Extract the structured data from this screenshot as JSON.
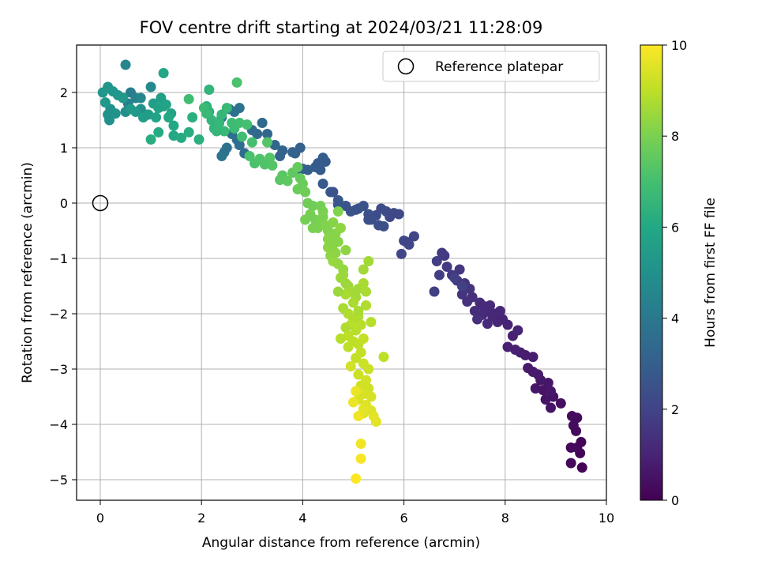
{
  "chart_data": {
    "type": "scatter",
    "title": "FOV centre drift starting at 2024/03/21 11:28:09",
    "xlabel": "Angular distance from reference (arcmin)",
    "ylabel": "Rotation from reference (arcmin)",
    "xlim": [
      -0.45,
      10.0
    ],
    "ylim": [
      -5.35,
      2.85
    ],
    "xticks": [
      "0",
      "2",
      "4",
      "6",
      "8",
      "10"
    ],
    "yticks": [
      "−5",
      "−4",
      "−3",
      "−2",
      "−1",
      "0",
      "1",
      "2"
    ],
    "grid": true,
    "legend": {
      "position": "top-right",
      "entries": [
        "Reference platepar"
      ]
    },
    "reference_point": {
      "x": 0,
      "y": 0
    },
    "colorbar": {
      "label": "Hours from first FF file",
      "range": [
        0,
        10
      ],
      "ticks": [
        "0",
        "2",
        "4",
        "6",
        "8",
        "10"
      ],
      "colormap": "viridis"
    },
    "colors": {
      "v0": "#440154",
      "v1": "#482475",
      "v2": "#414487",
      "v3": "#355f8d",
      "v4": "#2a788e",
      "v5": "#21918c",
      "v6": "#22a884",
      "v7": "#44bf70",
      "v8": "#7ad151",
      "v9": "#bddf26",
      "v10": "#fde725"
    },
    "points": [
      [
        9.52,
        -4.78,
        0.1
      ],
      [
        9.48,
        -4.52,
        0.1
      ],
      [
        9.42,
        -4.42,
        0.2
      ],
      [
        9.5,
        -4.32,
        0.1
      ],
      [
        9.3,
        -4.7,
        0.2
      ],
      [
        9.3,
        -4.42,
        0.2
      ],
      [
        9.4,
        -4.12,
        0.3
      ],
      [
        9.35,
        -4.02,
        0.3
      ],
      [
        9.42,
        -3.88,
        0.3
      ],
      [
        9.32,
        -3.85,
        0.3
      ],
      [
        9.1,
        -3.62,
        0.4
      ],
      [
        8.9,
        -3.7,
        0.5
      ],
      [
        8.95,
        -3.5,
        0.5
      ],
      [
        8.8,
        -3.55,
        0.5
      ],
      [
        8.75,
        -3.38,
        0.5
      ],
      [
        8.9,
        -3.4,
        0.6
      ],
      [
        8.85,
        -3.25,
        0.6
      ],
      [
        8.6,
        -3.35,
        0.6
      ],
      [
        8.7,
        -3.2,
        0.6
      ],
      [
        8.65,
        -3.1,
        0.7
      ],
      [
        8.55,
        -3.05,
        0.7
      ],
      [
        8.45,
        -2.98,
        0.7
      ],
      [
        8.4,
        -2.75,
        0.8
      ],
      [
        8.55,
        -2.78,
        0.8
      ],
      [
        8.3,
        -2.7,
        0.8
      ],
      [
        8.2,
        -2.65,
        0.9
      ],
      [
        8.05,
        -2.6,
        0.9
      ],
      [
        8.15,
        -2.4,
        0.9
      ],
      [
        8.25,
        -2.3,
        1.0
      ],
      [
        8.05,
        -2.2,
        1.0
      ],
      [
        7.95,
        -2.1,
        1.0
      ],
      [
        7.85,
        -2.15,
        1.1
      ],
      [
        7.9,
        -1.95,
        1.1
      ],
      [
        7.75,
        -2.05,
        1.1
      ],
      [
        7.65,
        -2.18,
        1.2
      ],
      [
        7.55,
        -2.02,
        1.2
      ],
      [
        7.7,
        -1.85,
        1.2
      ],
      [
        7.6,
        -1.9,
        1.3
      ],
      [
        7.5,
        -1.8,
        1.3
      ],
      [
        7.4,
        -1.95,
        1.3
      ],
      [
        7.45,
        -2.1,
        1.4
      ],
      [
        7.35,
        -1.7,
        1.4
      ],
      [
        7.25,
        -1.78,
        1.4
      ],
      [
        7.3,
        -1.55,
        1.5
      ],
      [
        7.15,
        -1.65,
        1.5
      ],
      [
        7.2,
        -1.45,
        1.5
      ],
      [
        7.05,
        -1.4,
        1.6
      ],
      [
        6.95,
        -1.3,
        1.6
      ],
      [
        7.1,
        -1.2,
        1.6
      ],
      [
        6.85,
        -1.15,
        1.7
      ],
      [
        6.75,
        -0.9,
        1.7
      ],
      [
        6.8,
        -0.95,
        1.7
      ],
      [
        6.6,
        -1.6,
        1.8
      ],
      [
        6.7,
        -1.3,
        1.8
      ],
      [
        6.65,
        -1.05,
        1.8
      ],
      [
        7.0,
        -1.35,
        1.9
      ],
      [
        7.15,
        -1.5,
        1.9
      ],
      [
        7.55,
        -1.85,
        1.2
      ],
      [
        7.65,
        -1.95,
        1.2
      ],
      [
        7.8,
        -2.0,
        1.1
      ],
      [
        6.2,
        -0.6,
        2.0
      ],
      [
        6.05,
        -0.7,
        2.0
      ],
      [
        6.1,
        -0.75,
        2.1
      ],
      [
        5.95,
        -0.92,
        2.1
      ],
      [
        6.0,
        -0.68,
        2.1
      ],
      [
        5.9,
        -0.2,
        2.2
      ],
      [
        5.8,
        -0.18,
        2.2
      ],
      [
        5.72,
        -0.25,
        2.2
      ],
      [
        5.65,
        -0.15,
        2.3
      ],
      [
        5.55,
        -0.1,
        2.3
      ],
      [
        5.45,
        -0.22,
        2.3
      ],
      [
        5.35,
        -0.3,
        2.4
      ],
      [
        5.5,
        -0.4,
        2.4
      ],
      [
        5.6,
        -0.42,
        2.4
      ],
      [
        5.2,
        -0.05,
        2.5
      ],
      [
        5.3,
        -0.2,
        2.5
      ],
      [
        5.05,
        -0.12,
        2.6
      ],
      [
        4.95,
        -0.15,
        2.6
      ],
      [
        4.85,
        -0.05,
        2.6
      ],
      [
        4.7,
        0.05,
        2.7
      ],
      [
        4.55,
        0.2,
        2.7
      ],
      [
        4.4,
        0.35,
        2.8
      ],
      [
        4.35,
        0.6,
        2.8
      ],
      [
        4.45,
        0.75,
        2.8
      ],
      [
        4.4,
        0.82,
        2.9
      ],
      [
        4.3,
        0.72,
        2.9
      ],
      [
        4.25,
        0.65,
        2.9
      ],
      [
        4.1,
        0.6,
        3.0
      ],
      [
        4.0,
        0.62,
        3.0
      ],
      [
        3.9,
        0.55,
        3.1
      ],
      [
        3.85,
        0.9,
        3.1
      ],
      [
        3.95,
        1.0,
        3.1
      ],
      [
        3.8,
        0.92,
        3.2
      ],
      [
        3.6,
        0.95,
        3.2
      ],
      [
        3.55,
        0.85,
        3.2
      ],
      [
        3.45,
        1.05,
        3.3
      ],
      [
        3.3,
        1.25,
        3.3
      ],
      [
        3.2,
        1.45,
        3.4
      ],
      [
        3.1,
        1.25,
        3.4
      ],
      [
        3.0,
        1.32,
        3.5
      ],
      [
        2.85,
        0.9,
        3.5
      ],
      [
        2.75,
        1.05,
        3.6
      ],
      [
        2.7,
        1.15,
        3.6
      ],
      [
        2.6,
        1.25,
        3.6
      ],
      [
        2.5,
        1.0,
        3.7
      ],
      [
        2.45,
        0.92,
        3.7
      ],
      [
        2.4,
        0.85,
        3.8
      ],
      [
        2.3,
        1.38,
        3.8
      ],
      [
        2.4,
        1.55,
        3.9
      ],
      [
        2.55,
        1.7,
        3.9
      ],
      [
        2.75,
        1.72,
        3.8
      ],
      [
        2.65,
        1.65,
        3.7
      ],
      [
        4.6,
        0.2,
        2.6
      ],
      [
        5.1,
        -0.1,
        2.5
      ],
      [
        5.3,
        -0.3,
        2.4
      ],
      [
        4.7,
        -0.03,
        2.7
      ],
      [
        0.5,
        2.5,
        4.5
      ],
      [
        0.6,
        2.0,
        4.2
      ],
      [
        0.55,
        1.8,
        4.3
      ],
      [
        0.7,
        1.9,
        4.4
      ],
      [
        0.9,
        1.6,
        5.4
      ],
      [
        0.8,
        1.9,
        4.6
      ],
      [
        1.0,
        2.1,
        4.7
      ],
      [
        0.8,
        1.7,
        4.9
      ],
      [
        0.5,
        1.65,
        4.9
      ],
      [
        0.3,
        1.62,
        5.1
      ],
      [
        0.15,
        1.6,
        5.1
      ],
      [
        0.2,
        1.7,
        5.0
      ],
      [
        0.18,
        1.5,
        5.0
      ],
      [
        0.25,
        2.02,
        5.2
      ],
      [
        0.15,
        2.1,
        5.2
      ],
      [
        0.05,
        2.0,
        5.2
      ],
      [
        0.1,
        1.82,
        5.3
      ],
      [
        0.35,
        1.95,
        5.3
      ],
      [
        0.45,
        1.9,
        5.3
      ],
      [
        0.6,
        1.7,
        5.4
      ],
      [
        0.7,
        1.65,
        5.4
      ],
      [
        0.95,
        1.6,
        5.5
      ],
      [
        0.85,
        1.55,
        5.5
      ],
      [
        1.05,
        1.8,
        5.6
      ],
      [
        1.2,
        1.9,
        5.6
      ],
      [
        1.25,
        1.75,
        5.7
      ],
      [
        1.15,
        1.72,
        5.7
      ],
      [
        1.3,
        1.78,
        5.8
      ],
      [
        1.1,
        1.55,
        5.8
      ],
      [
        1.4,
        1.62,
        5.8
      ],
      [
        1.35,
        1.55,
        5.9
      ],
      [
        1.25,
        2.35,
        5.9
      ],
      [
        1.45,
        1.4,
        6.0
      ],
      [
        1.45,
        1.22,
        6.0
      ],
      [
        1.6,
        1.18,
        6.1
      ],
      [
        1.15,
        1.28,
        6.1
      ],
      [
        1.0,
        1.15,
        6.2
      ],
      [
        1.75,
        1.28,
        6.2
      ],
      [
        1.82,
        1.55,
        6.3
      ],
      [
        1.95,
        1.15,
        6.3
      ],
      [
        2.1,
        1.75,
        6.4
      ],
      [
        2.15,
        1.65,
        6.4
      ],
      [
        2.2,
        1.5,
        6.5
      ],
      [
        2.25,
        1.35,
        6.5
      ],
      [
        2.35,
        1.45,
        6.6
      ],
      [
        2.4,
        1.6,
        6.6
      ],
      [
        2.5,
        1.72,
        6.7
      ],
      [
        2.45,
        1.3,
        6.7
      ],
      [
        2.6,
        1.45,
        6.8
      ],
      [
        2.65,
        1.35,
        6.8
      ],
      [
        2.75,
        1.45,
        6.9
      ],
      [
        2.8,
        1.2,
        6.9
      ],
      [
        2.9,
        1.42,
        7.0
      ],
      [
        3.0,
        1.1,
        7.0
      ],
      [
        2.95,
        0.85,
        7.1
      ],
      [
        3.05,
        0.72,
        7.1
      ],
      [
        3.15,
        0.8,
        7.2
      ],
      [
        3.25,
        0.7,
        7.2
      ],
      [
        3.35,
        0.82,
        7.3
      ],
      [
        3.4,
        0.68,
        7.3
      ],
      [
        3.3,
        1.1,
        7.3
      ],
      [
        2.15,
        2.05,
        6.5
      ],
      [
        2.7,
        2.18,
        7.1
      ],
      [
        1.75,
        1.88,
        6.9
      ],
      [
        2.05,
        1.72,
        6.8
      ],
      [
        2.1,
        1.62,
        6.7
      ],
      [
        2.3,
        1.3,
        6.6
      ],
      [
        3.6,
        0.5,
        7.4
      ],
      [
        3.55,
        0.42,
        7.4
      ],
      [
        3.7,
        0.4,
        7.5
      ],
      [
        3.8,
        0.55,
        7.5
      ],
      [
        3.9,
        0.65,
        7.6
      ],
      [
        3.95,
        0.45,
        7.6
      ],
      [
        4.0,
        0.35,
        7.7
      ],
      [
        3.9,
        0.25,
        7.7
      ],
      [
        4.05,
        0.2,
        7.8
      ],
      [
        4.1,
        0.0,
        7.8
      ],
      [
        4.2,
        -0.05,
        7.8
      ],
      [
        4.15,
        -0.2,
        7.9
      ],
      [
        4.25,
        -0.3,
        7.9
      ],
      [
        4.3,
        -0.45,
        8.0
      ],
      [
        4.35,
        -0.35,
        8.0
      ],
      [
        4.4,
        -0.25,
        8.0
      ],
      [
        4.45,
        -0.4,
        8.1
      ],
      [
        4.5,
        -0.5,
        8.1
      ],
      [
        4.55,
        -0.6,
        8.1
      ],
      [
        4.6,
        -0.35,
        8.2
      ],
      [
        4.65,
        -0.55,
        8.2
      ],
      [
        4.7,
        -0.7,
        8.2
      ],
      [
        4.75,
        -0.45,
        8.3
      ],
      [
        4.5,
        -0.8,
        8.3
      ],
      [
        4.55,
        -0.95,
        8.3
      ],
      [
        4.6,
        -1.05,
        8.4
      ],
      [
        4.7,
        -1.1,
        8.4
      ],
      [
        4.8,
        -1.2,
        8.4
      ],
      [
        4.75,
        -1.35,
        8.5
      ],
      [
        4.85,
        -1.45,
        8.5
      ],
      [
        4.9,
        -1.5,
        8.5
      ],
      [
        4.95,
        -1.6,
        8.6
      ],
      [
        5.05,
        -1.7,
        8.6
      ],
      [
        5.1,
        -1.55,
        8.6
      ],
      [
        5.0,
        -1.8,
        8.7
      ],
      [
        4.85,
        -1.65,
        8.7
      ],
      [
        4.8,
        -1.9,
        8.7
      ],
      [
        4.9,
        -2.0,
        8.8
      ],
      [
        5.0,
        -2.1,
        8.8
      ],
      [
        5.1,
        -2.05,
        8.8
      ],
      [
        4.95,
        -2.2,
        8.9
      ],
      [
        5.05,
        -2.3,
        8.9
      ],
      [
        5.15,
        -2.2,
        8.9
      ],
      [
        4.9,
        -2.4,
        9.0
      ],
      [
        5.0,
        -2.5,
        9.0
      ],
      [
        5.1,
        -2.55,
        9.0
      ],
      [
        5.2,
        -2.45,
        9.1
      ],
      [
        5.15,
        -2.7,
        9.1
      ],
      [
        5.05,
        -2.8,
        9.1
      ],
      [
        5.2,
        -2.9,
        9.2
      ],
      [
        5.3,
        -3.0,
        9.2
      ],
      [
        5.1,
        -3.1,
        9.2
      ],
      [
        5.25,
        -3.2,
        9.3
      ],
      [
        5.15,
        -3.3,
        9.3
      ],
      [
        5.3,
        -3.35,
        9.3
      ],
      [
        5.2,
        -3.45,
        9.4
      ],
      [
        5.35,
        -3.5,
        9.4
      ],
      [
        5.1,
        -3.55,
        9.4
      ],
      [
        5.25,
        -3.65,
        9.5
      ],
      [
        5.35,
        -3.75,
        9.5
      ],
      [
        5.2,
        -3.8,
        9.5
      ],
      [
        5.4,
        -3.85,
        9.6
      ],
      [
        5.45,
        -3.95,
        9.6
      ],
      [
        5.6,
        -2.78,
        9.0
      ],
      [
        4.95,
        -2.95,
        9.3
      ],
      [
        5.05,
        -3.4,
        9.7
      ],
      [
        5.15,
        -4.35,
        9.8
      ],
      [
        5.15,
        -4.62,
        9.9
      ],
      [
        5.05,
        -4.98,
        10.0
      ],
      [
        5.0,
        -3.6,
        9.7
      ],
      [
        5.1,
        -3.85,
        9.8
      ],
      [
        5.2,
        -3.72,
        9.6
      ],
      [
        4.8,
        -1.3,
        8.5
      ],
      [
        4.65,
        -0.9,
        8.3
      ],
      [
        4.7,
        -1.6,
        8.5
      ],
      [
        5.2,
        -1.2,
        8.6
      ],
      [
        5.3,
        -1.05,
        8.6
      ],
      [
        5.2,
        -1.45,
        8.7
      ],
      [
        5.25,
        -1.6,
        8.7
      ],
      [
        4.85,
        -2.25,
        8.8
      ],
      [
        4.75,
        -2.45,
        8.9
      ],
      [
        4.9,
        -2.6,
        9.0
      ],
      [
        5.25,
        -1.85,
        8.8
      ],
      [
        5.35,
        -2.15,
        8.9
      ],
      [
        5.1,
        -1.95,
        8.7
      ],
      [
        4.4,
        -0.15,
        8.0
      ],
      [
        4.2,
        -0.45,
        8.0
      ],
      [
        4.5,
        -0.65,
        8.2
      ],
      [
        4.6,
        -0.75,
        8.2
      ],
      [
        4.85,
        -0.85,
        8.3
      ],
      [
        4.7,
        -0.15,
        8.1
      ],
      [
        4.35,
        -0.05,
        7.9
      ],
      [
        4.05,
        -0.3,
        7.9
      ]
    ]
  }
}
